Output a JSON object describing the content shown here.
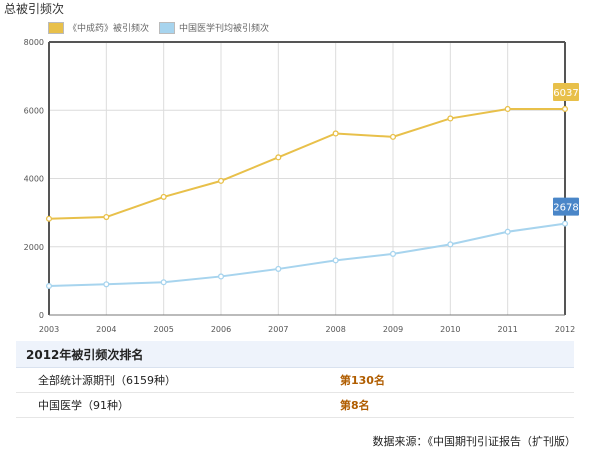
{
  "page": {
    "title": "总被引频次"
  },
  "chart_data": {
    "type": "line",
    "x": [
      "2003",
      "2004",
      "2005",
      "2006",
      "2007",
      "2008",
      "2009",
      "2010",
      "2011",
      "2012"
    ],
    "ylim": [
      0,
      8000
    ],
    "yticks": [
      0,
      2000,
      4000,
      6000,
      8000
    ],
    "grid": true,
    "legend_position": "top-left",
    "series": [
      {
        "name": "《中成药》被引频次",
        "color": "#e8c04a",
        "values": [
          2820,
          2870,
          3460,
          3930,
          4620,
          5320,
          5220,
          5760,
          6037,
          6037
        ],
        "end_label": "6037"
      },
      {
        "name": "中国医学刊均被引频次",
        "color": "#a7d4ee",
        "values": [
          850,
          900,
          960,
          1130,
          1350,
          1600,
          1790,
          2070,
          2440,
          2678
        ],
        "end_label": "2678",
        "end_label_bg": "#4a86c8"
      }
    ]
  },
  "ranking": {
    "title": "2012年被引频次排名",
    "rows": [
      {
        "label": "全部统计源期刊（6159种）",
        "value": "第130名"
      },
      {
        "label": "中国医学（91种）",
        "value": "第8名"
      }
    ]
  },
  "source": "数据来源：《中国期刊引证报告（扩刊版）"
}
